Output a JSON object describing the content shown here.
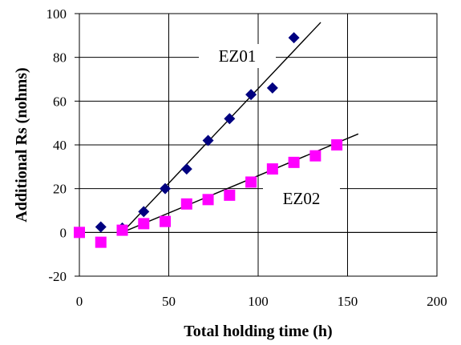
{
  "chart_data": {
    "type": "scatter",
    "xlabel": "Total holding time (h)",
    "ylabel": "Additional Rs (nohms)",
    "xlim": [
      0,
      200
    ],
    "ylim": [
      -20,
      100
    ],
    "x_ticks": [
      "0",
      "50",
      "100",
      "150",
      "200"
    ],
    "y_ticks": [
      "-20",
      "0",
      "20",
      "40",
      "60",
      "80",
      "100"
    ],
    "grid": true,
    "series": [
      {
        "name": "EZ01",
        "marker": "diamond",
        "color": "#000080",
        "x": [
          12,
          24,
          36,
          48,
          60,
          72,
          84,
          96,
          108,
          120
        ],
        "y": [
          2.5,
          2,
          9.5,
          20,
          29,
          42,
          52,
          63,
          66,
          89
        ],
        "trendline": {
          "x": [
            24,
            135
          ],
          "y": [
            0,
            96
          ]
        }
      },
      {
        "name": "EZ02",
        "marker": "square",
        "color": "#ff00ff",
        "x": [
          0,
          12,
          24,
          36,
          48,
          60,
          72,
          84,
          96,
          108,
          120,
          132,
          144
        ],
        "y": [
          0,
          -4.5,
          1,
          4,
          5,
          13,
          15,
          17,
          23,
          29,
          32,
          35,
          40
        ],
        "trendline": {
          "x": [
            24,
            156
          ],
          "y": [
            0,
            45
          ]
        }
      }
    ],
    "annotations": [
      "EZ01",
      "EZ02"
    ]
  }
}
